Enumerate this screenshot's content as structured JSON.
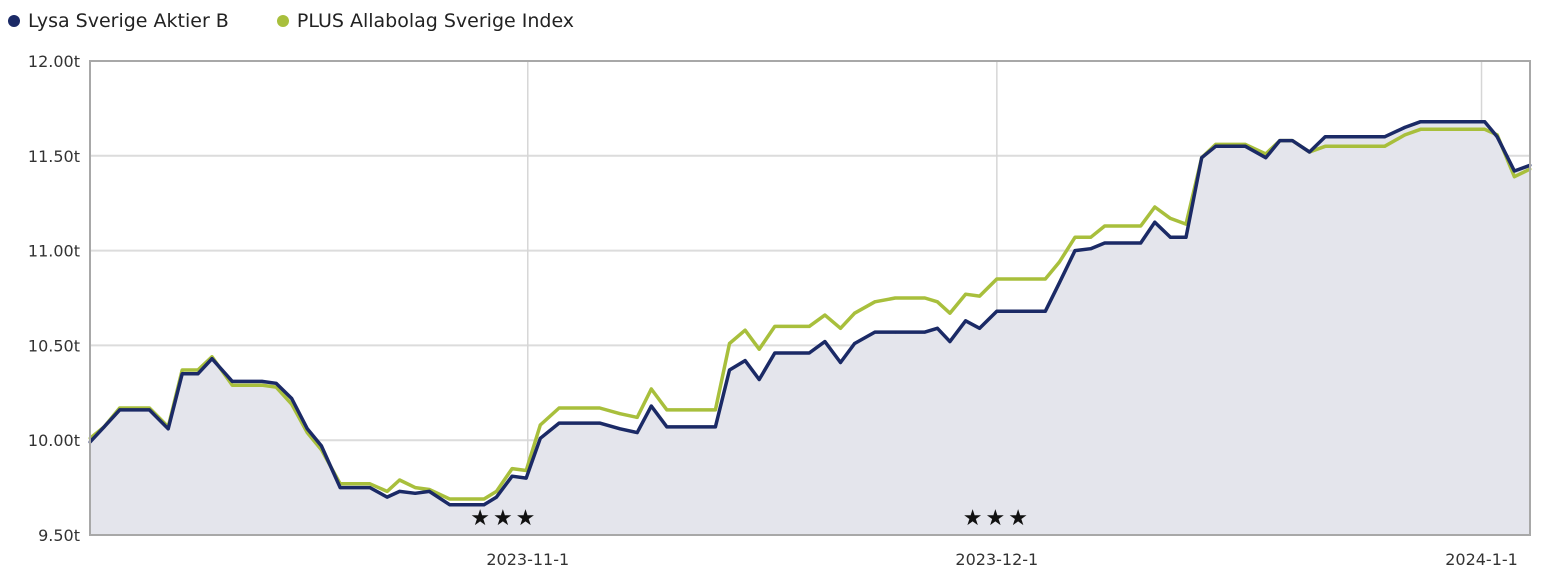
{
  "chart_data": {
    "type": "line",
    "title": "",
    "xlabel": "",
    "ylabel": "",
    "x_unit": "days since 2023-11-1",
    "xlim": [
      -28,
      64.1
    ],
    "ylim": [
      9.5,
      12.0
    ],
    "grid": true,
    "legend_position": "top-left",
    "yticks": [
      {
        "value": 12.0,
        "label": "12.00t"
      },
      {
        "value": 11.5,
        "label": "11.50t"
      },
      {
        "value": 11.0,
        "label": "11.00t"
      },
      {
        "value": 10.5,
        "label": "10.50t"
      },
      {
        "value": 10.0,
        "label": "10.00t"
      },
      {
        "value": 9.5,
        "label": "9.50t"
      }
    ],
    "xticks": [
      {
        "value": 0,
        "label": "2023-11-1"
      },
      {
        "value": 30,
        "label": "2023-12-1"
      },
      {
        "value": 61,
        "label": "2024-1-1"
      }
    ],
    "annotations": [
      {
        "x": -1.5,
        "label": "★★★"
      },
      {
        "x": 30,
        "label": "★★★"
      }
    ],
    "x": [
      -28,
      -27.1,
      -26.1,
      -24.2,
      -23,
      -22.1,
      -21.1,
      -20.2,
      -18.9,
      -17,
      -16.1,
      -15.1,
      -14.1,
      -13.2,
      -12,
      -10.1,
      -9,
      -8.2,
      -7.2,
      -6.3,
      -5,
      -2.8,
      -2,
      -1,
      -0.1,
      0.8,
      2,
      4.6,
      5.9,
      7,
      7.9,
      8.9,
      12,
      12.9,
      13.9,
      14.8,
      15.8,
      18,
      19,
      20,
      20.9,
      22.2,
      23.5,
      25.4,
      26.2,
      27,
      28,
      28.9,
      30,
      33.1,
      34,
      35,
      36,
      36.9,
      39.2,
      40.1,
      41.1,
      42.1,
      43.1,
      44,
      45.9,
      47.2,
      48.1,
      48.9,
      50,
      51,
      54.8,
      56.1,
      57.1,
      61.2,
      62,
      63.1,
      64.1
    ],
    "series": [
      {
        "name": "Lysa Sverige Aktier B",
        "color": "#1b2a66",
        "filled": true,
        "values": [
          9.99,
          10.07,
          10.16,
          10.16,
          10.06,
          10.35,
          10.35,
          10.43,
          10.31,
          10.31,
          10.3,
          10.22,
          10.06,
          9.97,
          9.75,
          9.75,
          9.7,
          9.73,
          9.72,
          9.73,
          9.66,
          9.66,
          9.7,
          9.81,
          9.8,
          10.01,
          10.09,
          10.09,
          10.06,
          10.04,
          10.18,
          10.07,
          10.07,
          10.37,
          10.42,
          10.32,
          10.46,
          10.46,
          10.52,
          10.41,
          10.51,
          10.57,
          10.57,
          10.57,
          10.59,
          10.52,
          10.63,
          10.59,
          10.68,
          10.68,
          10.83,
          11.0,
          11.01,
          11.04,
          11.04,
          11.15,
          11.07,
          11.07,
          11.49,
          11.55,
          11.55,
          11.49,
          11.58,
          11.58,
          11.52,
          11.6,
          11.6,
          11.65,
          11.68,
          11.68,
          11.6,
          11.42,
          11.45
        ]
      },
      {
        "name": "PLUS Allabolag Sverige Index",
        "color": "#a8bf3c",
        "filled": false,
        "values": [
          10.01,
          10.07,
          10.17,
          10.17,
          10.07,
          10.37,
          10.37,
          10.44,
          10.29,
          10.29,
          10.28,
          10.19,
          10.04,
          9.95,
          9.77,
          9.77,
          9.73,
          9.79,
          9.75,
          9.74,
          9.69,
          9.69,
          9.73,
          9.85,
          9.84,
          10.08,
          10.17,
          10.17,
          10.14,
          10.12,
          10.27,
          10.16,
          10.16,
          10.51,
          10.58,
          10.48,
          10.6,
          10.6,
          10.66,
          10.59,
          10.67,
          10.73,
          10.75,
          10.75,
          10.73,
          10.67,
          10.77,
          10.76,
          10.85,
          10.85,
          10.94,
          11.07,
          11.07,
          11.13,
          11.13,
          11.23,
          11.17,
          11.14,
          11.49,
          11.56,
          11.56,
          11.51,
          11.58,
          11.58,
          11.52,
          11.55,
          11.55,
          11.61,
          11.64,
          11.64,
          11.61,
          11.39,
          11.43
        ]
      }
    ]
  }
}
